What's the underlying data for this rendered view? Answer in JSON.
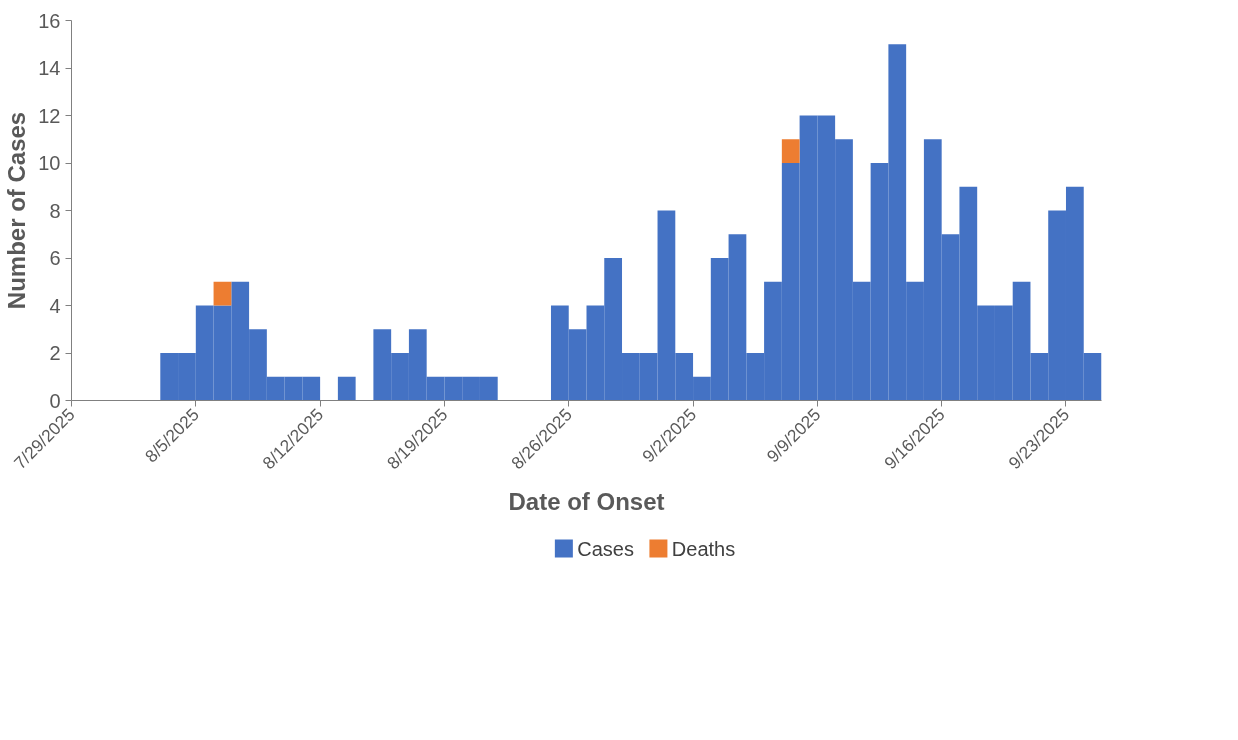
{
  "chart_data": {
    "type": "bar",
    "stacked": true,
    "xlabel": "Date of Onset",
    "ylabel": "Number of Cases",
    "x": [
      "2025-07-29T12:00",
      "2025-07-30T12:00",
      "2025-07-31T12:00",
      "2025-08-01T12:00",
      "2025-08-02T12:00",
      "2025-08-03T12:00",
      "2025-08-04T12:00",
      "2025-08-05T12:00",
      "2025-08-06T12:00",
      "2025-08-07T12:00",
      "2025-08-08T12:00",
      "2025-08-09T12:00",
      "2025-08-10T12:00",
      "2025-08-11T12:00",
      "2025-08-12T12:00",
      "2025-08-13T12:00",
      "2025-08-14T12:00",
      "2025-08-15T12:00",
      "2025-08-16T12:00",
      "2025-08-17T12:00",
      "2025-08-18T12:00",
      "2025-08-19T12:00",
      "2025-08-20T12:00",
      "2025-08-21T12:00",
      "2025-08-22T12:00",
      "2025-08-23T12:00",
      "2025-08-24T12:00",
      "2025-08-25T12:00",
      "2025-08-26T12:00",
      "2025-08-27T12:00",
      "2025-08-28T12:00",
      "2025-08-29T12:00",
      "2025-08-30T12:00",
      "2025-08-31T12:00",
      "2025-09-01T12:00",
      "2025-09-02T12:00",
      "2025-09-03T12:00",
      "2025-09-04T12:00",
      "2025-09-05T12:00",
      "2025-09-06T12:00",
      "2025-09-07T12:00",
      "2025-09-08T12:00",
      "2025-09-09T12:00",
      "2025-09-10T12:00",
      "2025-09-11T12:00",
      "2025-09-12T12:00",
      "2025-09-13T12:00",
      "2025-09-14T12:00",
      "2025-09-15T12:00",
      "2025-09-16T12:00",
      "2025-09-17T12:00",
      "2025-09-18T12:00",
      "2025-09-19T12:00",
      "2025-09-20T12:00",
      "2025-09-21T12:00",
      "2025-09-22T12:00",
      "2025-09-23T12:00",
      "2025-09-24T12:00"
    ],
    "series": [
      {
        "name": "Cases",
        "color": "#4472c4",
        "values": [
          0,
          0,
          0,
          0,
          0,
          2,
          2,
          4,
          4,
          5,
          3,
          1,
          1,
          1,
          0,
          1,
          0,
          3,
          2,
          3,
          1,
          1,
          1,
          1,
          0,
          0,
          0,
          4,
          3,
          4,
          6,
          2,
          2,
          8,
          2,
          1,
          6,
          7,
          2,
          5,
          10,
          12,
          12,
          11,
          5,
          10,
          15,
          5,
          11,
          7,
          9,
          4,
          4,
          5,
          2,
          8,
          9,
          2
        ]
      },
      {
        "name": "Deaths",
        "color": "#ed7d31",
        "values": [
          0,
          0,
          0,
          0,
          0,
          0,
          0,
          0,
          1,
          0,
          0,
          0,
          0,
          0,
          0,
          0,
          0,
          0,
          0,
          0,
          0,
          0,
          0,
          0,
          0,
          0,
          0,
          0,
          0,
          0,
          0,
          0,
          0,
          0,
          0,
          0,
          0,
          0,
          0,
          0,
          1,
          0,
          0,
          0,
          0,
          0,
          0,
          0,
          0,
          0,
          0,
          0,
          0,
          0,
          0,
          0,
          0,
          0
        ]
      }
    ],
    "xlim": [
      "2025-07-29",
      "2025-09-25"
    ],
    "xticks": [
      {
        "value": "2025-07-29",
        "label": "7/29/2025"
      },
      {
        "value": "2025-08-05",
        "label": "8/5/2025"
      },
      {
        "value": "2025-08-12",
        "label": "8/12/2025"
      },
      {
        "value": "2025-08-19",
        "label": "8/19/2025"
      },
      {
        "value": "2025-08-26",
        "label": "8/26/2025"
      },
      {
        "value": "2025-09-02",
        "label": "9/2/2025"
      },
      {
        "value": "2025-09-09",
        "label": "9/9/2025"
      },
      {
        "value": "2025-09-16",
        "label": "9/16/2025"
      },
      {
        "value": "2025-09-23",
        "label": "9/23/2025"
      }
    ],
    "ylim": [
      0,
      16
    ],
    "yticks": [
      0,
      2,
      4,
      6,
      8,
      10,
      12,
      14,
      16
    ],
    "grid": false,
    "legend": "bottom"
  }
}
